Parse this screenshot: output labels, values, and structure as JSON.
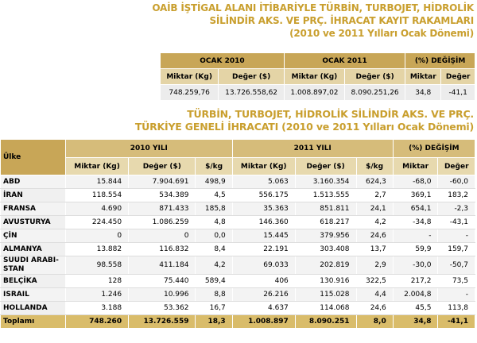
{
  "header": {
    "title_lines": [
      "OAİB İŞTİGAL ALANI İTİBARİYLE TÜRBİN, TURBOJET, HİDROLİK",
      "SİLİNDİR AKS. VE PRÇ. İHRACAT KAYIT RAKAMLARI",
      "(2010 ve 2011 Yılları Ocak Dönemi)"
    ]
  },
  "table1": {
    "groups": [
      "OCAK 2010",
      "OCAK 2011",
      "(%) DEĞİŞİM"
    ],
    "columns": [
      "Miktar (Kg)",
      "Değer ($)",
      "Miktar (Kg)",
      "Değer ($)",
      "Miktar",
      "Değer"
    ],
    "row": [
      "748.259,76",
      "13.726.558,62",
      "1.008.897,02",
      "8.090.251,26",
      "34,8",
      "-41,1"
    ]
  },
  "section2": {
    "title_lines": [
      "TÜRBİN, TURBOJET, HİDROLİK SİLİNDİR AKS. VE PRÇ.",
      "TÜRKİYE GENELİ İHRACATI (2010 ve 2011 Yılları Ocak Dönemi)"
    ]
  },
  "table2": {
    "country_header": "Ülke",
    "groups": [
      "2010 YILI",
      "2011 YILI",
      "(%) DEĞİŞİM"
    ],
    "columns": [
      "Miktar (Kg)",
      "Değer ($)",
      "$/kg",
      "Miktar (Kg)",
      "Değer ($)",
      "$/kg",
      "Miktar",
      "Değer"
    ],
    "rows": [
      [
        "ABD",
        "15.844",
        "7.904.691",
        "498,9",
        "5.063",
        "3.160.354",
        "624,3",
        "-68,0",
        "-60,0"
      ],
      [
        "İRAN",
        "118.554",
        "534.389",
        "4,5",
        "556.175",
        "1.513.555",
        "2,7",
        "369,1",
        "183,2"
      ],
      [
        "FRANSA",
        "4.690",
        "871.433",
        "185,8",
        "35.363",
        "851.811",
        "24,1",
        "654,1",
        "-2,3"
      ],
      [
        "AVUSTURYA",
        "224.450",
        "1.086.259",
        "4,8",
        "146.360",
        "618.217",
        "4,2",
        "-34,8",
        "-43,1"
      ],
      [
        "ÇİN",
        "0",
        "0",
        "0,0",
        "15.445",
        "379.956",
        "24,6",
        "-",
        "-"
      ],
      [
        "ALMANYA",
        "13.882",
        "116.832",
        "8,4",
        "22.191",
        "303.408",
        "13,7",
        "59,9",
        "159,7"
      ],
      [
        "SUUDI ARABI-STAN",
        "98.558",
        "411.184",
        "4,2",
        "69.033",
        "202.819",
        "2,9",
        "-30,0",
        "-50,7"
      ],
      [
        "BELÇİKA",
        "128",
        "75.440",
        "589,4",
        "406",
        "130.916",
        "322,5",
        "217,2",
        "73,5"
      ],
      [
        "ISRAIL",
        "1.246",
        "10.996",
        "8,8",
        "26.216",
        "115.028",
        "4,4",
        "2.004,8",
        "-"
      ],
      [
        "HOLLANDA",
        "3.188",
        "53.362",
        "16,7",
        "4.637",
        "114.068",
        "24,6",
        "45,5",
        "113,8"
      ]
    ],
    "total": [
      "Toplamı",
      "748.260",
      "13.726.559",
      "18,3",
      "1.008.897",
      "8.090.251",
      "8,0",
      "34,8",
      "-41,1"
    ]
  }
}
